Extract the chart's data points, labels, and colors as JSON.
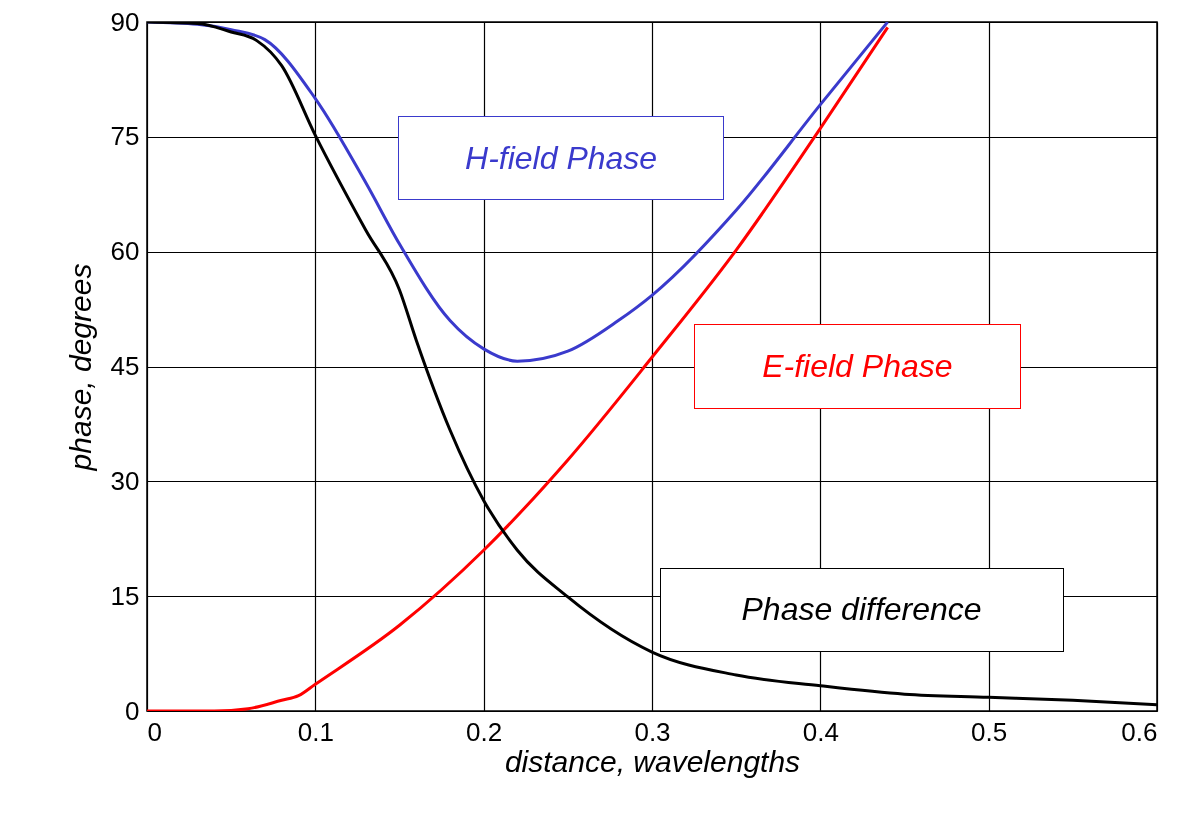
{
  "chart_data": {
    "type": "line",
    "xlabel": "distance, wavelengths",
    "ylabel": "phase, degrees",
    "xlim": [
      0,
      0.6
    ],
    "xticks": [
      0,
      0.1,
      0.2,
      0.3,
      0.4,
      0.5,
      0.6
    ],
    "ylim": [
      0,
      90
    ],
    "yticks": [
      0,
      15,
      30,
      45,
      60,
      75,
      90
    ],
    "grid": true,
    "series": [
      {
        "name": "H-field Phase",
        "color": "#3a3acc",
        "x": [
          0,
          0.03,
          0.05,
          0.07,
          0.1,
          0.13,
          0.15,
          0.18,
          0.2,
          0.22,
          0.25,
          0.28,
          0.3,
          0.35,
          0.4,
          0.44
        ],
        "values": [
          90,
          89.7,
          89,
          87.7,
          80,
          69,
          61,
          51,
          47.3,
          45.7,
          47,
          51,
          54.3,
          65.4,
          79.2,
          90
        ]
      },
      {
        "name": "E-field Phase",
        "color": "#ff0000",
        "x": [
          0,
          0.04,
          0.06,
          0.08,
          0.09,
          0.1,
          0.15,
          0.2,
          0.25,
          0.3,
          0.35,
          0.4,
          0.44
        ],
        "values": [
          0,
          0,
          0.3,
          1.4,
          2,
          3.5,
          11.2,
          21,
          32.8,
          46.2,
          60.2,
          76.1,
          89.3
        ]
      },
      {
        "name": "Phase difference",
        "color": "#000000",
        "x": [
          0,
          0.03,
          0.05,
          0.065,
          0.08,
          0.1,
          0.13,
          0.15,
          0.16,
          0.18,
          0.2,
          0.22,
          0.25,
          0.3,
          0.35,
          0.4,
          0.45,
          0.5,
          0.55,
          0.6
        ],
        "values": [
          90,
          89.8,
          88.7,
          87.6,
          84.3,
          75.2,
          62.8,
          55,
          48.4,
          36.7,
          27.5,
          21,
          14.9,
          7.7,
          4.7,
          3.3,
          2.2,
          1.8,
          1.4,
          0.8
        ]
      }
    ]
  }
}
